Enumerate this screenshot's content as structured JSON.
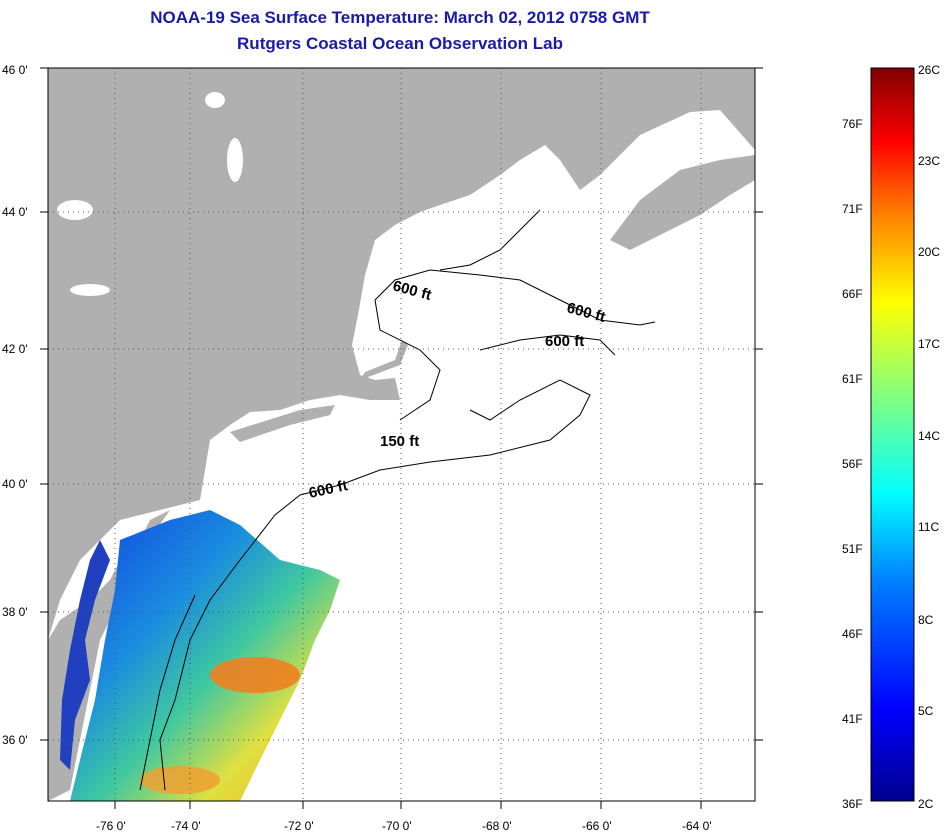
{
  "title": "NOAA-19 Sea Surface Temperature:  March 02, 2012 0758 GMT",
  "subtitle": "Rutgers Coastal Ocean Observation Lab",
  "map": {
    "lat_labels": [
      "46 0'",
      "44 0'",
      "42 0'",
      "40 0'",
      "38 0'",
      "36 0'"
    ],
    "lon_labels": [
      "-76 0'",
      "-74 0'",
      "-72 0'",
      "-70 0'",
      "-68 0'",
      "-66 0'",
      "-64 0'"
    ],
    "contour_labels": [
      "600 ft",
      "600 ft",
      "600 ft",
      "150 ft",
      "600 ft"
    ],
    "colors": {
      "land": "#b0b0b0",
      "ocean_nodata": "#ffffff",
      "grid": "#555555"
    }
  },
  "colorbar": {
    "fahrenheit_labels": [
      "76F",
      "71F",
      "66F",
      "61F",
      "56F",
      "51F",
      "46F",
      "41F",
      "36F"
    ],
    "celsius_labels": [
      "26C",
      "23C",
      "20C",
      "17C",
      "14C",
      "11C",
      "8C",
      "5C",
      "2C"
    ],
    "gradient_stops": [
      "#00008f",
      "#0000ff",
      "#0080ff",
      "#00ffff",
      "#80ff80",
      "#ffff00",
      "#ff8000",
      "#ff0000",
      "#800000"
    ]
  }
}
